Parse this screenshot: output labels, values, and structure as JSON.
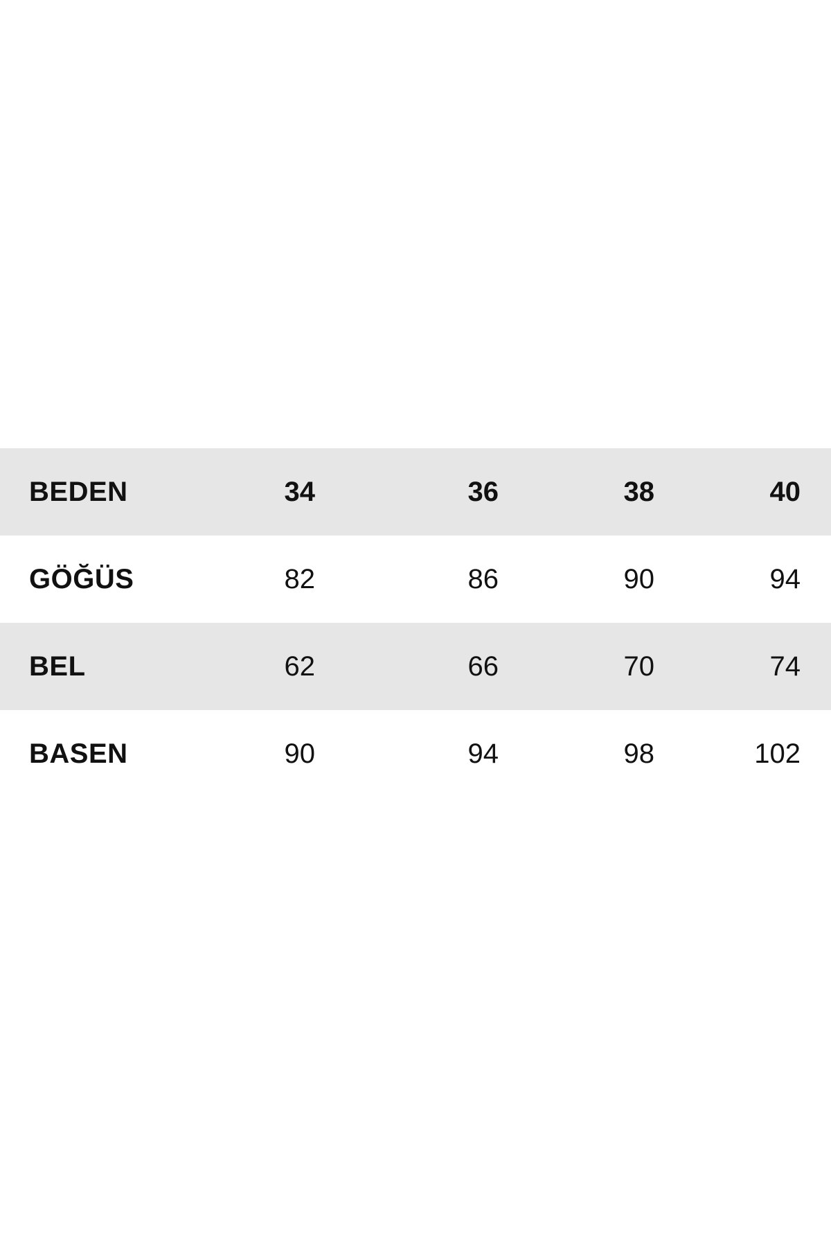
{
  "table": {
    "header": {
      "label": "BEDEN",
      "values": [
        "34",
        "36",
        "38",
        "40"
      ]
    },
    "rows": [
      {
        "label": "GÖĞÜS",
        "values": [
          "82",
          "86",
          "90",
          "94"
        ]
      },
      {
        "label": "BEL",
        "values": [
          "62",
          "66",
          "70",
          "74"
        ]
      },
      {
        "label": "BASEN",
        "values": [
          "90",
          "94",
          "98",
          "102"
        ]
      }
    ]
  },
  "colors": {
    "shaded_row": "#e6e6e6",
    "plain_row": "#ffffff",
    "text": "#111111"
  }
}
